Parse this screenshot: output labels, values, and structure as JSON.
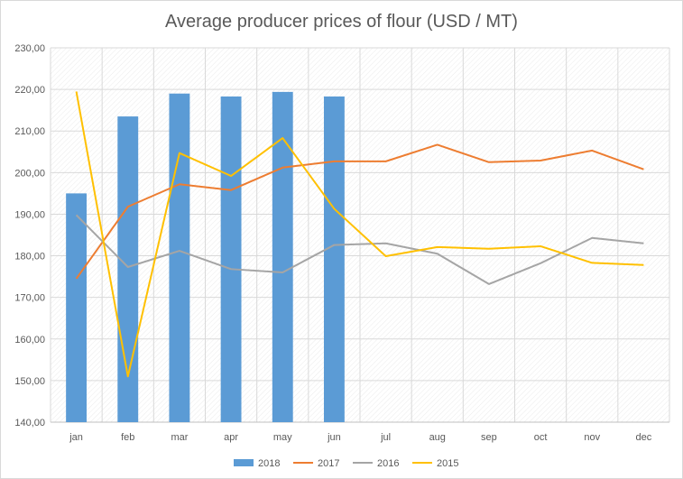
{
  "chart_data": {
    "type": "bar",
    "title": "Average producer prices of flour (USD / MT)",
    "xlabel": "",
    "ylabel": "",
    "ylim": [
      140,
      230
    ],
    "y_ticks": [
      "140,00",
      "150,00",
      "160,00",
      "170,00",
      "180,00",
      "190,00",
      "200,00",
      "210,00",
      "220,00",
      "230,00"
    ],
    "y_tick_values": [
      140,
      150,
      160,
      170,
      180,
      190,
      200,
      210,
      220,
      230
    ],
    "categories": [
      "jan",
      "feb",
      "mar",
      "apr",
      "may",
      "jun",
      "jul",
      "aug",
      "sep",
      "oct",
      "nov",
      "dec"
    ],
    "grid": true,
    "legend_position": "bottom",
    "series": [
      {
        "name": "2018",
        "kind": "bar",
        "color": "#5b9bd5",
        "values": [
          195.0,
          213.5,
          219.0,
          218.3,
          219.4,
          218.3,
          null,
          null,
          null,
          null,
          null,
          null
        ]
      },
      {
        "name": "2017",
        "kind": "line",
        "color": "#ed7d31",
        "values": [
          174.5,
          191.8,
          197.2,
          195.8,
          201.2,
          202.7,
          202.7,
          206.7,
          202.5,
          202.9,
          205.3,
          200.8
        ]
      },
      {
        "name": "2016",
        "kind": "line",
        "color": "#a5a5a5",
        "values": [
          189.8,
          177.3,
          181.2,
          176.8,
          176.0,
          182.6,
          183.0,
          180.5,
          173.2,
          178.2,
          184.3,
          183.0
        ]
      },
      {
        "name": "2015",
        "kind": "line",
        "color": "#ffc000",
        "values": [
          219.5,
          151.0,
          204.7,
          199.2,
          208.3,
          191.3,
          179.9,
          182.1,
          181.7,
          182.3,
          178.3,
          177.8
        ]
      }
    ]
  }
}
